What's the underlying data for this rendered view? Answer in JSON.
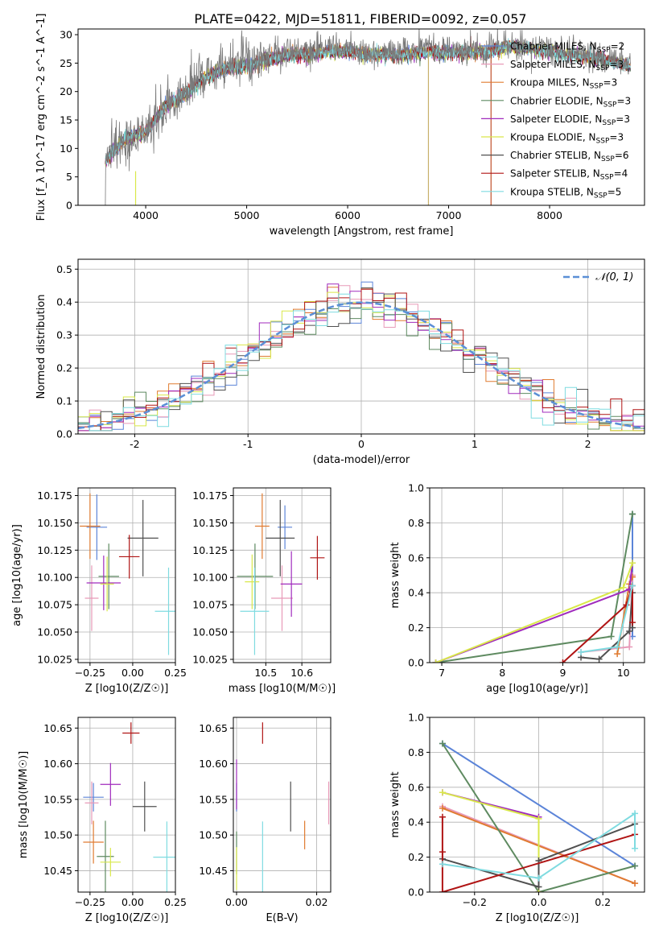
{
  "figure": {
    "title": "PLATE=0422, MJD=51811, FIBERID=0092, z=0.057"
  },
  "models": [
    {
      "name": "Chabrier MILES",
      "nssp": "2",
      "color": "#5b84d8"
    },
    {
      "name": "Salpeter MILES",
      "nssp": "3",
      "color": "#e89ab8"
    },
    {
      "name": "Kroupa MILES",
      "nssp": "3",
      "color": "#e07b30"
    },
    {
      "name": "Chabrier ELODIE",
      "nssp": "3",
      "color": "#5e8a60"
    },
    {
      "name": "Salpeter ELODIE",
      "nssp": "3",
      "color": "#a02bbd"
    },
    {
      "name": "Kroupa ELODIE",
      "nssp": "3",
      "color": "#d9e84a"
    },
    {
      "name": "Chabrier STELIB",
      "nssp": "6",
      "color": "#505050"
    },
    {
      "name": "Salpeter STELIB",
      "nssp": "4",
      "color": "#b01414"
    },
    {
      "name": "Kroupa STELIB",
      "nssp": "5",
      "color": "#7fdbe0"
    }
  ],
  "chart_data": [
    {
      "type": "line",
      "id": "spectrum",
      "title": "PLATE=0422, MJD=51811, FIBERID=0092, z=0.057",
      "xlabel": "wavelength [Angstrom, rest frame]",
      "ylabel": "Flux [f_λ 10^-17 erg cm^-2 s^-1 A^-1]",
      "xlim": [
        3330,
        8940
      ],
      "ylim": [
        0,
        31
      ],
      "xticks": [
        4000,
        5000,
        6000,
        7000,
        8000
      ],
      "yticks": [
        0,
        5,
        10,
        15,
        20,
        25,
        30
      ],
      "legend": "right",
      "data_trend_x": [
        3600,
        3800,
        4000,
        4200,
        4400,
        4600,
        4800,
        5000,
        5200,
        5400,
        5600,
        5800,
        6000,
        6200,
        6400,
        6600,
        6800,
        7000,
        7200,
        7400,
        7600,
        7800,
        8000,
        8200,
        8400,
        8600,
        8800
      ],
      "data_trend_y": [
        8,
        12,
        13,
        18,
        20,
        23,
        24.5,
        25,
        26,
        27,
        27,
        27.5,
        27.5,
        27,
        27,
        27,
        27.5,
        27.2,
        27.5,
        27.5,
        28.5,
        28,
        27.5,
        27,
        26.5,
        26,
        25
      ],
      "drops": [
        {
          "x": 6800,
          "color": "#c8b06a"
        },
        {
          "x": 7420,
          "color": "#c0502a"
        }
      ]
    },
    {
      "type": "line",
      "id": "residuals",
      "xlabel": "(data-model)/error",
      "ylabel": "Normed distribution",
      "xlim": [
        -2.5,
        2.5
      ],
      "ylim": [
        0,
        0.53
      ],
      "xticks": [
        -2,
        -1,
        0,
        1,
        2
      ],
      "yticks": [
        0,
        0.1,
        0.2,
        0.3,
        0.4,
        0.5
      ],
      "legend": "top-right",
      "reference": {
        "name": "𝒩(0, 1)",
        "color": "#5b8fd6"
      },
      "bins": 50
    },
    {
      "type": "scatter",
      "id": "z-age",
      "xlabel": "Z [log10(Z/Z☉)]",
      "ylabel": "age [log10(age/yr)]",
      "xlim": [
        -0.32,
        0.25
      ],
      "ylim": [
        10.022,
        10.182
      ],
      "xticks": [
        -0.25,
        0,
        0.25
      ],
      "xtick_labels": [
        "−0.25",
        "0.00",
        "0.25"
      ],
      "yticks": [
        10.025,
        10.05,
        10.075,
        10.1,
        10.125,
        10.15,
        10.175
      ],
      "points": [
        {
          "x": -0.21,
          "y": 10.146,
          "xe": 0.06,
          "ye": 0.03
        },
        {
          "x": -0.24,
          "y": 10.081,
          "xe": 0.04,
          "ye": 0.03
        },
        {
          "x": -0.25,
          "y": 10.147,
          "xe": 0.06,
          "ye": 0.03
        },
        {
          "x": -0.14,
          "y": 10.101,
          "xe": 0.06,
          "ye": 0.03
        },
        {
          "x": -0.17,
          "y": 10.095,
          "xe": 0.1,
          "ye": 0.025
        },
        {
          "x": -0.15,
          "y": 10.094,
          "xe": 0.04,
          "ye": 0.025
        },
        {
          "x": 0.06,
          "y": 10.136,
          "xe": 0.09,
          "ye": 0.035
        },
        {
          "x": -0.02,
          "y": 10.119,
          "xe": 0.06,
          "ye": 0.02
        },
        {
          "x": 0.21,
          "y": 10.069,
          "xe": 0.08,
          "ye": 0.04
        }
      ]
    },
    {
      "type": "scatter",
      "id": "mass-age",
      "xlabel": "mass [log10(M/M☉)]",
      "ylabel": "",
      "xlim": [
        10.41,
        10.68
      ],
      "ylim": [
        10.022,
        10.182
      ],
      "xticks": [
        10.5,
        10.6
      ],
      "yticks": [
        10.025,
        10.05,
        10.075,
        10.1,
        10.125,
        10.15,
        10.175
      ],
      "points": [
        {
          "x": 10.553,
          "y": 10.146,
          "xe": 0.02,
          "ye": 0.02
        },
        {
          "x": 10.545,
          "y": 10.081,
          "xe": 0.03,
          "ye": 0.03
        },
        {
          "x": 10.49,
          "y": 10.147,
          "xe": 0.02,
          "ye": 0.03
        },
        {
          "x": 10.47,
          "y": 10.101,
          "xe": 0.05,
          "ye": 0.03
        },
        {
          "x": 10.571,
          "y": 10.094,
          "xe": 0.03,
          "ye": 0.03
        },
        {
          "x": 10.462,
          "y": 10.096,
          "xe": 0.02,
          "ye": 0.025
        },
        {
          "x": 10.54,
          "y": 10.136,
          "xe": 0.04,
          "ye": 0.035
        },
        {
          "x": 10.643,
          "y": 10.118,
          "xe": 0.02,
          "ye": 0.02
        },
        {
          "x": 10.469,
          "y": 10.069,
          "xe": 0.04,
          "ye": 0.04
        }
      ]
    },
    {
      "type": "line",
      "id": "age-weight",
      "xlabel": "age [log10(age/yr)]",
      "ylabel": "mass weight",
      "xlim": [
        6.8,
        10.35
      ],
      "ylim": [
        0,
        1
      ],
      "xticks": [
        7,
        8,
        9,
        10
      ],
      "yticks": [
        0,
        0.2,
        0.4,
        0.6,
        0.8,
        1.0
      ],
      "series": [
        {
          "x": [
            10.15,
            10.15
          ],
          "y": [
            0.85,
            0.15
          ]
        },
        {
          "x": [
            9.3,
            10.1,
            10.15
          ],
          "y": [
            0.06,
            0.09,
            0.5
          ]
        },
        {
          "x": [
            9.9,
            10.1,
            10.15
          ],
          "y": [
            0.05,
            0.45,
            0.49
          ]
        },
        {
          "x": [
            6.9,
            9.8,
            10.15,
            10.15
          ],
          "y": [
            0.0,
            0.15,
            0.85,
            0.85
          ]
        },
        {
          "x": [
            6.9,
            10.1,
            10.15
          ],
          "y": [
            0.0,
            0.42,
            0.57
          ]
        },
        {
          "x": [
            6.9,
            10.0,
            10.15
          ],
          "y": [
            0.0,
            0.43,
            0.57
          ]
        },
        {
          "x": [
            9.3,
            9.6,
            10.1,
            10.15,
            10.15
          ],
          "y": [
            0.03,
            0.02,
            0.18,
            0.4,
            0.2
          ]
        },
        {
          "x": [
            9.0,
            10.05,
            10.15,
            10.15
          ],
          "y": [
            0.0,
            0.33,
            0.44,
            0.23
          ]
        },
        {
          "x": [
            9.3,
            9.9,
            10.15
          ],
          "y": [
            0.06,
            0.09,
            0.44
          ]
        }
      ]
    },
    {
      "type": "scatter",
      "id": "z-mass",
      "xlabel": "Z [log10(Z/Z☉)]",
      "ylabel": "mass [log10(M/M☉)]",
      "xlim": [
        -0.32,
        0.25
      ],
      "ylim": [
        10.42,
        10.665
      ],
      "xticks": [
        -0.25,
        0,
        0.25
      ],
      "xtick_labels": [
        "−0.25",
        "0.00",
        "0.25"
      ],
      "yticks": [
        10.45,
        10.5,
        10.55,
        10.6,
        10.65
      ],
      "points": [
        {
          "x": -0.23,
          "y": 10.553,
          "xe": 0.06,
          "ye": 0.02
        },
        {
          "x": -0.24,
          "y": 10.545,
          "xe": 0.04,
          "ye": 0.03
        },
        {
          "x": -0.23,
          "y": 10.49,
          "xe": 0.06,
          "ye": 0.03
        },
        {
          "x": -0.16,
          "y": 10.47,
          "xe": 0.05,
          "ye": 0.05
        },
        {
          "x": -0.13,
          "y": 10.571,
          "xe": 0.06,
          "ye": 0.03
        },
        {
          "x": -0.13,
          "y": 10.462,
          "xe": 0.06,
          "ye": 0.02
        },
        {
          "x": 0.07,
          "y": 10.54,
          "xe": 0.07,
          "ye": 0.035
        },
        {
          "x": -0.01,
          "y": 10.643,
          "xe": 0.05,
          "ye": 0.015
        },
        {
          "x": 0.2,
          "y": 10.469,
          "xe": 0.08,
          "ye": 0.05
        }
      ]
    },
    {
      "type": "scatter",
      "id": "ebv-mass",
      "xlabel": "E(B-V)",
      "ylabel": "",
      "xlim": [
        -0.0008,
        0.0235
      ],
      "ylim": [
        10.42,
        10.665
      ],
      "xticks": [
        0.0,
        0.02
      ],
      "xtick_labels": [
        "0.00",
        "0.02"
      ],
      "yticks": [
        10.45,
        10.5,
        10.55,
        10.6,
        10.65
      ],
      "points": [
        {
          "x": 0.0,
          "y": 10.553,
          "ye": 0.02
        },
        {
          "x": 0.023,
          "y": 10.545,
          "ye": 0.03
        },
        {
          "x": 0.017,
          "y": 10.5,
          "ye": 0.02
        },
        {
          "x": 0.0,
          "y": 10.475,
          "ye": 0.03
        },
        {
          "x": 0.0,
          "y": 10.571,
          "ye": 0.035
        },
        {
          "x": 0.0,
          "y": 10.453,
          "ye": 0.03
        },
        {
          "x": 0.0135,
          "y": 10.54,
          "ye": 0.035
        },
        {
          "x": 0.0065,
          "y": 10.643,
          "ye": 0.015
        },
        {
          "x": 0.0065,
          "y": 10.469,
          "ye": 0.05
        }
      ]
    },
    {
      "type": "line",
      "id": "z-weight",
      "xlabel": "Z [log10(Z/Z☉)]",
      "ylabel": "mass weight",
      "xlim": [
        -0.34,
        0.33
      ],
      "ylim": [
        0,
        1
      ],
      "xticks": [
        -0.2,
        0.0,
        0.2
      ],
      "xtick_labels": [
        "−0.2",
        "0.0",
        "0.2"
      ],
      "yticks": [
        0,
        0.2,
        0.4,
        0.6,
        0.8,
        1.0
      ],
      "series": [
        {
          "x": [
            -0.3,
            0.3
          ],
          "y": [
            0.85,
            0.15
          ]
        },
        {
          "x": [
            -0.3,
            0.3
          ],
          "y": [
            0.49,
            0.05
          ]
        },
        {
          "x": [
            -0.3,
            0.3
          ],
          "y": [
            0.48,
            0.05
          ]
        },
        {
          "x": [
            -0.3,
            0.0,
            0.3
          ],
          "y": [
            0.85,
            0.0,
            0.15
          ]
        },
        {
          "x": [
            -0.3,
            0.0,
            0.0
          ],
          "y": [
            0.57,
            0.43,
            0.0
          ]
        },
        {
          "x": [
            -0.3,
            0.0,
            0.0
          ],
          "y": [
            0.57,
            0.42,
            0.0
          ]
        },
        {
          "x": [
            -0.3,
            0.0,
            0.0,
            0.3
          ],
          "y": [
            0.19,
            0.03,
            0.18,
            0.39
          ]
        },
        {
          "x": [
            -0.3,
            -0.3,
            -0.3,
            0.3
          ],
          "y": [
            0.43,
            0.23,
            0.0,
            0.33
          ]
        },
        {
          "x": [
            -0.3,
            0.0,
            0.3,
            0.3
          ],
          "y": [
            0.16,
            0.08,
            0.45,
            0.25
          ]
        }
      ]
    }
  ]
}
